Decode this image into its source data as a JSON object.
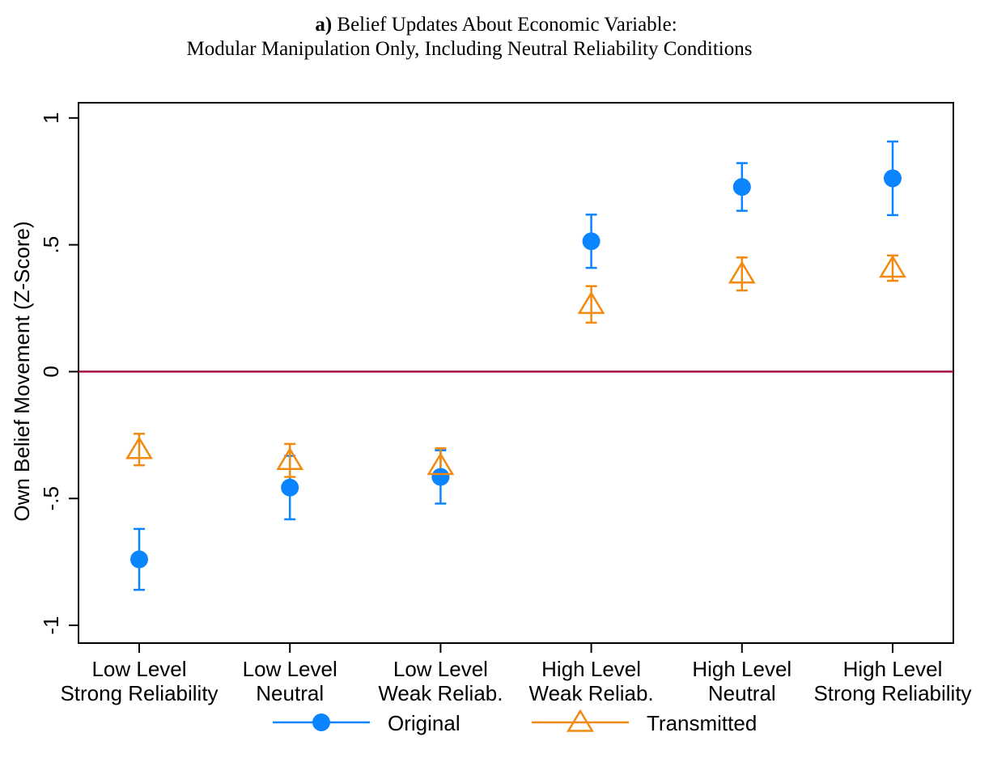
{
  "chart_data": {
    "type": "errorbar",
    "title_label": "a)",
    "title": [
      "Belief Updates About Economic Variable:",
      "Modular Manipulation Only, Including Neutral Reliability Conditions"
    ],
    "y_label": "Own Belief Movement (Z-Score)",
    "categories": [
      [
        "Low Level",
        "Strong Reliability"
      ],
      [
        "Low Level",
        "Neutral"
      ],
      [
        "Low Level",
        "Weak Reliab."
      ],
      [
        "High Level",
        "Weak Reliab."
      ],
      [
        "High Level",
        "Neutral"
      ],
      [
        "High Level",
        "Strong Reliability"
      ]
    ],
    "series": [
      {
        "name": "Original",
        "color": "#0a84ff",
        "marker": "circle",
        "values": [
          -0.74,
          -0.457,
          -0.415,
          0.514,
          0.728,
          0.762
        ],
        "errors": [
          0.12,
          0.125,
          0.105,
          0.105,
          0.094,
          0.145
        ]
      },
      {
        "name": "Transmitted",
        "color": "#f28a10",
        "marker": "triangle",
        "values": [
          -0.307,
          -0.35,
          -0.37,
          0.265,
          0.385,
          0.408
        ],
        "errors": [
          0.062,
          0.065,
          0.068,
          0.072,
          0.065,
          0.05
        ]
      }
    ],
    "reference_line": {
      "value": 0,
      "color": "#a8123e"
    },
    "ylim": [
      -1.07,
      1.06
    ],
    "yticks": [
      {
        "value": -1,
        "label": "-1"
      },
      {
        "value": -0.5,
        "label": "-.5"
      },
      0,
      {
        "value": 0.5,
        "label": ".5"
      },
      1
    ]
  }
}
